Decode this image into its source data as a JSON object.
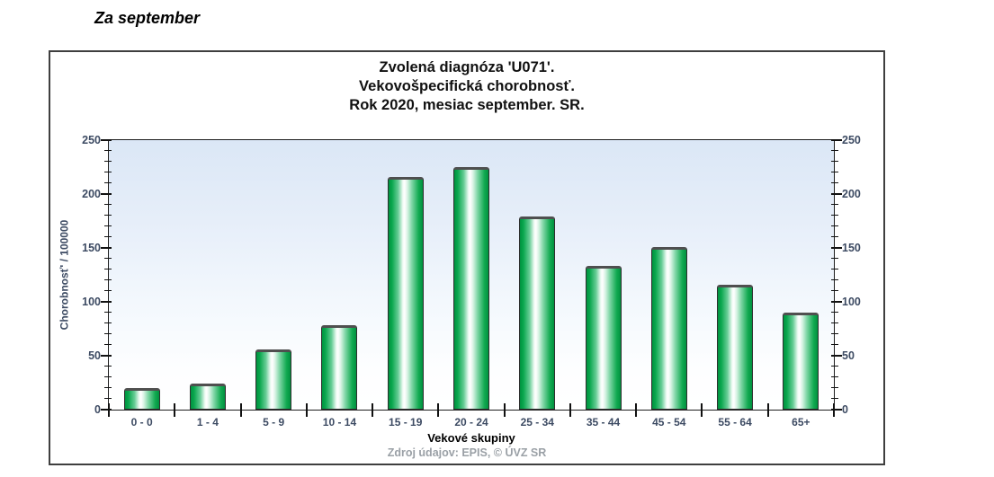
{
  "page": {
    "heading": "Za september"
  },
  "chart": {
    "title_lines": [
      "Zvolená diagnóza 'U071'.",
      "Vekovošpecifická chorobnosť.",
      "Rok 2020, mesiac september. SR."
    ]
  },
  "chart_data": {
    "type": "bar",
    "title": "Zvolená diagnóza 'U071'. Vekovošpecifická chorobnosť. Rok 2020, mesiac september. SR.",
    "categories": [
      "0 - 0",
      "1 - 4",
      "5 - 9",
      "10 - 14",
      "15 - 19",
      "20 - 24",
      "25 - 34",
      "35 - 44",
      "45 - 54",
      "55 - 64",
      "65+"
    ],
    "values": [
      20,
      24,
      56,
      78,
      216,
      225,
      179,
      133,
      151,
      116,
      90
    ],
    "xlabel": "Vekové skupiny",
    "ylabel": "Chorobnosť' / 100000",
    "ylim": [
      0,
      250
    ],
    "ytick_step": 50,
    "yminor_step": 10,
    "yticks": [
      0,
      50,
      100,
      150,
      200,
      250
    ],
    "grid": false,
    "legend": "none",
    "bar_edge_color": "#009a44",
    "bar_highlight_color": "#ffffff",
    "plot_bg_top": "#dbe7f6",
    "plot_bg_bottom": "#ffffff",
    "tick_label_color": "#3d4b63",
    "source_note": "Zdroj údajov: EPIS, © ÚVZ SR"
  }
}
